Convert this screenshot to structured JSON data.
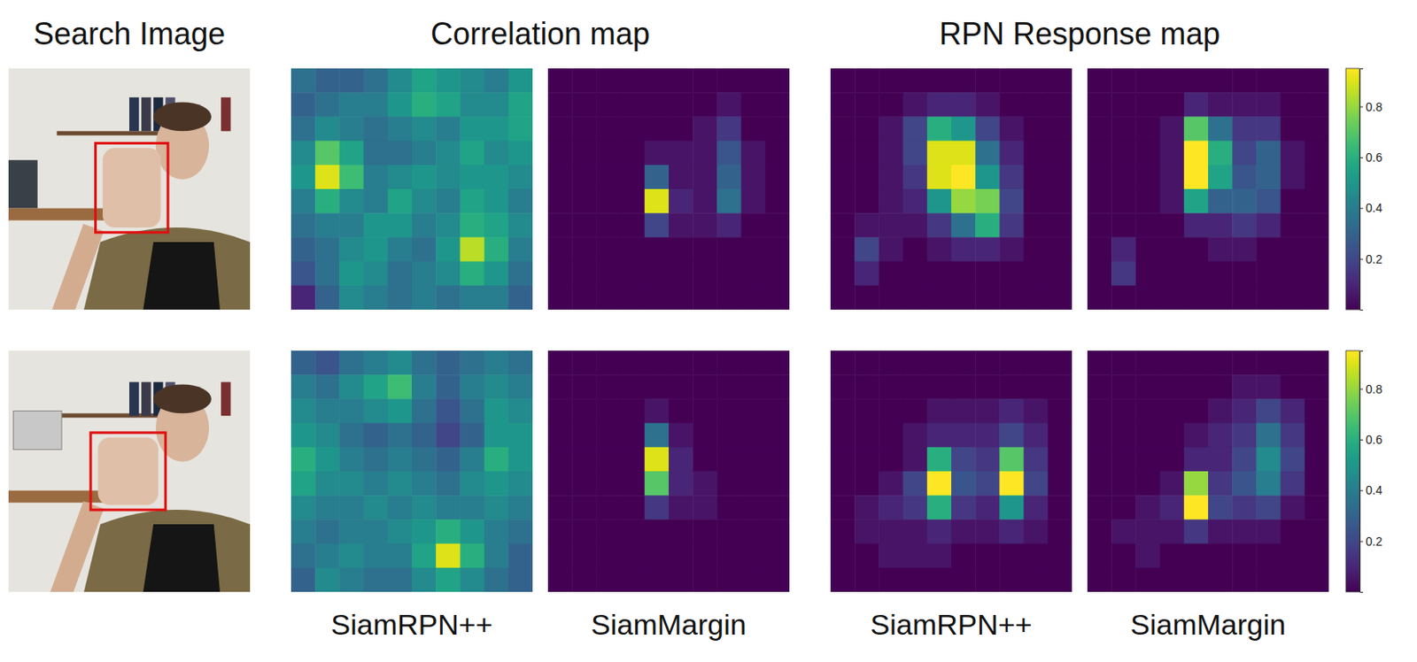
{
  "headers": [
    "Search Image",
    "Correlation map",
    "RPN Response map"
  ],
  "column_labels": [
    "SiamRPN++",
    "SiamMargin",
    "SiamRPN++",
    "SiamMargin"
  ],
  "colorbars": [
    {
      "range": [
        0,
        0.95
      ],
      "ticks": [
        0.2,
        0.4,
        0.6,
        0.8
      ]
    },
    {
      "range": [
        0,
        0.95
      ],
      "ticks": [
        0.2,
        0.4,
        0.6,
        0.8
      ]
    }
  ],
  "chart_data": [
    {
      "type": "heatmap",
      "cells": [
        [
          0.35,
          0.3,
          0.3,
          0.35,
          0.45,
          0.55,
          0.5,
          0.45,
          0.4,
          0.5
        ],
        [
          0.3,
          0.35,
          0.4,
          0.4,
          0.5,
          0.6,
          0.55,
          0.45,
          0.45,
          0.55
        ],
        [
          0.35,
          0.45,
          0.4,
          0.35,
          0.4,
          0.45,
          0.4,
          0.5,
          0.5,
          0.55
        ],
        [
          0.45,
          0.7,
          0.55,
          0.35,
          0.35,
          0.4,
          0.45,
          0.55,
          0.45,
          0.5
        ],
        [
          0.5,
          0.9,
          0.65,
          0.4,
          0.45,
          0.5,
          0.45,
          0.5,
          0.5,
          0.45
        ],
        [
          0.4,
          0.6,
          0.45,
          0.4,
          0.55,
          0.45,
          0.4,
          0.55,
          0.5,
          0.4
        ],
        [
          0.35,
          0.4,
          0.4,
          0.5,
          0.5,
          0.4,
          0.45,
          0.6,
          0.55,
          0.45
        ],
        [
          0.3,
          0.35,
          0.45,
          0.5,
          0.4,
          0.35,
          0.5,
          0.85,
          0.6,
          0.4
        ],
        [
          0.25,
          0.35,
          0.5,
          0.45,
          0.35,
          0.4,
          0.45,
          0.6,
          0.5,
          0.35
        ],
        [
          0.1,
          0.3,
          0.45,
          0.4,
          0.35,
          0.4,
          0.35,
          0.4,
          0.4,
          0.3
        ]
      ]
    },
    {
      "type": "heatmap",
      "cells": [
        [
          0,
          0,
          0,
          0,
          0,
          0,
          0,
          0,
          0,
          0
        ],
        [
          0,
          0,
          0,
          0,
          0,
          0,
          0,
          0.05,
          0,
          0
        ],
        [
          0,
          0,
          0,
          0,
          0,
          0,
          0.05,
          0.15,
          0,
          0
        ],
        [
          0,
          0,
          0,
          0,
          0.05,
          0.05,
          0.05,
          0.25,
          0.05,
          0
        ],
        [
          0,
          0,
          0,
          0,
          0.3,
          0.05,
          0.05,
          0.3,
          0.05,
          0
        ],
        [
          0,
          0,
          0,
          0,
          0.9,
          0.1,
          0.05,
          0.35,
          0.05,
          0
        ],
        [
          0,
          0,
          0,
          0,
          0.2,
          0.05,
          0.05,
          0.1,
          0,
          0
        ],
        [
          0,
          0,
          0,
          0,
          0,
          0,
          0,
          0,
          0,
          0
        ],
        [
          0,
          0,
          0,
          0,
          0,
          0,
          0,
          0,
          0,
          0
        ],
        [
          0,
          0,
          0,
          0,
          0,
          0,
          0,
          0,
          0,
          0
        ]
      ]
    },
    {
      "type": "heatmap",
      "cells": [
        [
          0,
          0,
          0,
          0,
          0,
          0,
          0,
          0,
          0,
          0
        ],
        [
          0,
          0,
          0,
          0.05,
          0.1,
          0.1,
          0.05,
          0,
          0,
          0
        ],
        [
          0,
          0,
          0.05,
          0.2,
          0.6,
          0.5,
          0.2,
          0.05,
          0,
          0
        ],
        [
          0,
          0,
          0.05,
          0.2,
          0.9,
          0.9,
          0.35,
          0.1,
          0,
          0
        ],
        [
          0,
          0,
          0.05,
          0.15,
          0.9,
          0.95,
          0.5,
          0.15,
          0,
          0
        ],
        [
          0,
          0,
          0.05,
          0.1,
          0.5,
          0.8,
          0.75,
          0.2,
          0,
          0
        ],
        [
          0,
          0.05,
          0.05,
          0.05,
          0.15,
          0.35,
          0.6,
          0.15,
          0,
          0
        ],
        [
          0,
          0.2,
          0.05,
          0,
          0.05,
          0.1,
          0.1,
          0.05,
          0,
          0
        ],
        [
          0,
          0.1,
          0,
          0,
          0,
          0,
          0,
          0,
          0,
          0
        ],
        [
          0,
          0,
          0,
          0,
          0,
          0,
          0,
          0,
          0,
          0
        ]
      ]
    },
    {
      "type": "heatmap",
      "cells": [
        [
          0,
          0,
          0,
          0,
          0,
          0,
          0,
          0,
          0,
          0
        ],
        [
          0,
          0,
          0,
          0,
          0.1,
          0.05,
          0.05,
          0.05,
          0,
          0
        ],
        [
          0,
          0,
          0,
          0.05,
          0.7,
          0.35,
          0.15,
          0.15,
          0,
          0
        ],
        [
          0,
          0,
          0,
          0.05,
          0.95,
          0.6,
          0.2,
          0.3,
          0.05,
          0
        ],
        [
          0,
          0,
          0,
          0.05,
          0.95,
          0.55,
          0.25,
          0.3,
          0.05,
          0
        ],
        [
          0,
          0,
          0,
          0.05,
          0.55,
          0.3,
          0.3,
          0.25,
          0,
          0
        ],
        [
          0,
          0,
          0,
          0,
          0.1,
          0.1,
          0.15,
          0.1,
          0,
          0
        ],
        [
          0,
          0.1,
          0,
          0,
          0,
          0.05,
          0.05,
          0,
          0,
          0
        ],
        [
          0,
          0.15,
          0,
          0,
          0,
          0,
          0,
          0,
          0,
          0
        ],
        [
          0,
          0,
          0,
          0,
          0,
          0,
          0,
          0,
          0,
          0
        ]
      ]
    },
    {
      "type": "heatmap",
      "cells": [
        [
          0.3,
          0.25,
          0.35,
          0.4,
          0.45,
          0.35,
          0.3,
          0.35,
          0.4,
          0.35
        ],
        [
          0.4,
          0.35,
          0.45,
          0.55,
          0.65,
          0.4,
          0.3,
          0.4,
          0.45,
          0.4
        ],
        [
          0.45,
          0.4,
          0.4,
          0.45,
          0.5,
          0.35,
          0.25,
          0.35,
          0.5,
          0.45
        ],
        [
          0.5,
          0.45,
          0.35,
          0.3,
          0.35,
          0.3,
          0.2,
          0.3,
          0.5,
          0.5
        ],
        [
          0.6,
          0.5,
          0.4,
          0.35,
          0.4,
          0.35,
          0.3,
          0.4,
          0.6,
          0.5
        ],
        [
          0.55,
          0.45,
          0.45,
          0.4,
          0.45,
          0.4,
          0.35,
          0.45,
          0.5,
          0.45
        ],
        [
          0.45,
          0.4,
          0.4,
          0.45,
          0.4,
          0.45,
          0.4,
          0.4,
          0.45,
          0.4
        ],
        [
          0.4,
          0.35,
          0.4,
          0.4,
          0.45,
          0.5,
          0.6,
          0.5,
          0.4,
          0.35
        ],
        [
          0.35,
          0.4,
          0.45,
          0.4,
          0.4,
          0.55,
          0.9,
          0.6,
          0.4,
          0.3
        ],
        [
          0.3,
          0.45,
          0.4,
          0.35,
          0.35,
          0.45,
          0.55,
          0.45,
          0.35,
          0.3
        ]
      ]
    },
    {
      "type": "heatmap",
      "cells": [
        [
          0,
          0,
          0,
          0,
          0,
          0,
          0,
          0,
          0,
          0
        ],
        [
          0,
          0,
          0,
          0,
          0,
          0,
          0,
          0,
          0,
          0
        ],
        [
          0,
          0,
          0,
          0,
          0.05,
          0,
          0,
          0,
          0,
          0
        ],
        [
          0,
          0,
          0,
          0,
          0.35,
          0.05,
          0,
          0,
          0,
          0
        ],
        [
          0,
          0,
          0,
          0,
          0.9,
          0.1,
          0,
          0,
          0,
          0
        ],
        [
          0,
          0,
          0,
          0,
          0.7,
          0.1,
          0.05,
          0,
          0,
          0
        ],
        [
          0,
          0,
          0,
          0,
          0.15,
          0.05,
          0.05,
          0,
          0,
          0
        ],
        [
          0,
          0,
          0,
          0,
          0,
          0,
          0,
          0,
          0,
          0
        ],
        [
          0,
          0,
          0,
          0,
          0,
          0,
          0,
          0,
          0,
          0
        ],
        [
          0,
          0,
          0,
          0,
          0,
          0,
          0,
          0,
          0,
          0
        ]
      ]
    },
    {
      "type": "heatmap",
      "cells": [
        [
          0,
          0,
          0,
          0,
          0,
          0,
          0,
          0,
          0,
          0
        ],
        [
          0,
          0,
          0,
          0,
          0,
          0,
          0,
          0,
          0,
          0
        ],
        [
          0,
          0,
          0,
          0,
          0.05,
          0.05,
          0.05,
          0.1,
          0.05,
          0
        ],
        [
          0,
          0,
          0,
          0.05,
          0.1,
          0.1,
          0.1,
          0.2,
          0.1,
          0
        ],
        [
          0,
          0,
          0,
          0.05,
          0.6,
          0.2,
          0.15,
          0.7,
          0.15,
          0
        ],
        [
          0,
          0,
          0.05,
          0.2,
          0.95,
          0.25,
          0.2,
          0.95,
          0.2,
          0
        ],
        [
          0,
          0.05,
          0.1,
          0.15,
          0.6,
          0.15,
          0.1,
          0.5,
          0.1,
          0
        ],
        [
          0,
          0.05,
          0.05,
          0.05,
          0.1,
          0.05,
          0.05,
          0.1,
          0.05,
          0
        ],
        [
          0,
          0,
          0.05,
          0.05,
          0.05,
          0,
          0,
          0,
          0,
          0
        ],
        [
          0,
          0,
          0,
          0,
          0,
          0,
          0,
          0,
          0,
          0
        ]
      ]
    },
    {
      "type": "heatmap",
      "cells": [
        [
          0,
          0,
          0,
          0,
          0,
          0,
          0,
          0,
          0,
          0
        ],
        [
          0,
          0,
          0,
          0,
          0,
          0,
          0.05,
          0.05,
          0,
          0
        ],
        [
          0,
          0,
          0,
          0,
          0,
          0.05,
          0.1,
          0.2,
          0.1,
          0
        ],
        [
          0,
          0,
          0,
          0,
          0.05,
          0.1,
          0.15,
          0.35,
          0.15,
          0
        ],
        [
          0,
          0,
          0,
          0,
          0.1,
          0.1,
          0.2,
          0.45,
          0.2,
          0
        ],
        [
          0,
          0,
          0,
          0.05,
          0.8,
          0.15,
          0.25,
          0.4,
          0.15,
          0
        ],
        [
          0,
          0,
          0.05,
          0.1,
          0.95,
          0.2,
          0.15,
          0.2,
          0.05,
          0
        ],
        [
          0,
          0.05,
          0.05,
          0.05,
          0.15,
          0.05,
          0.05,
          0.05,
          0,
          0
        ],
        [
          0,
          0,
          0.05,
          0,
          0,
          0,
          0,
          0,
          0,
          0
        ],
        [
          0,
          0,
          0,
          0,
          0,
          0,
          0,
          0,
          0,
          0
        ]
      ]
    }
  ]
}
